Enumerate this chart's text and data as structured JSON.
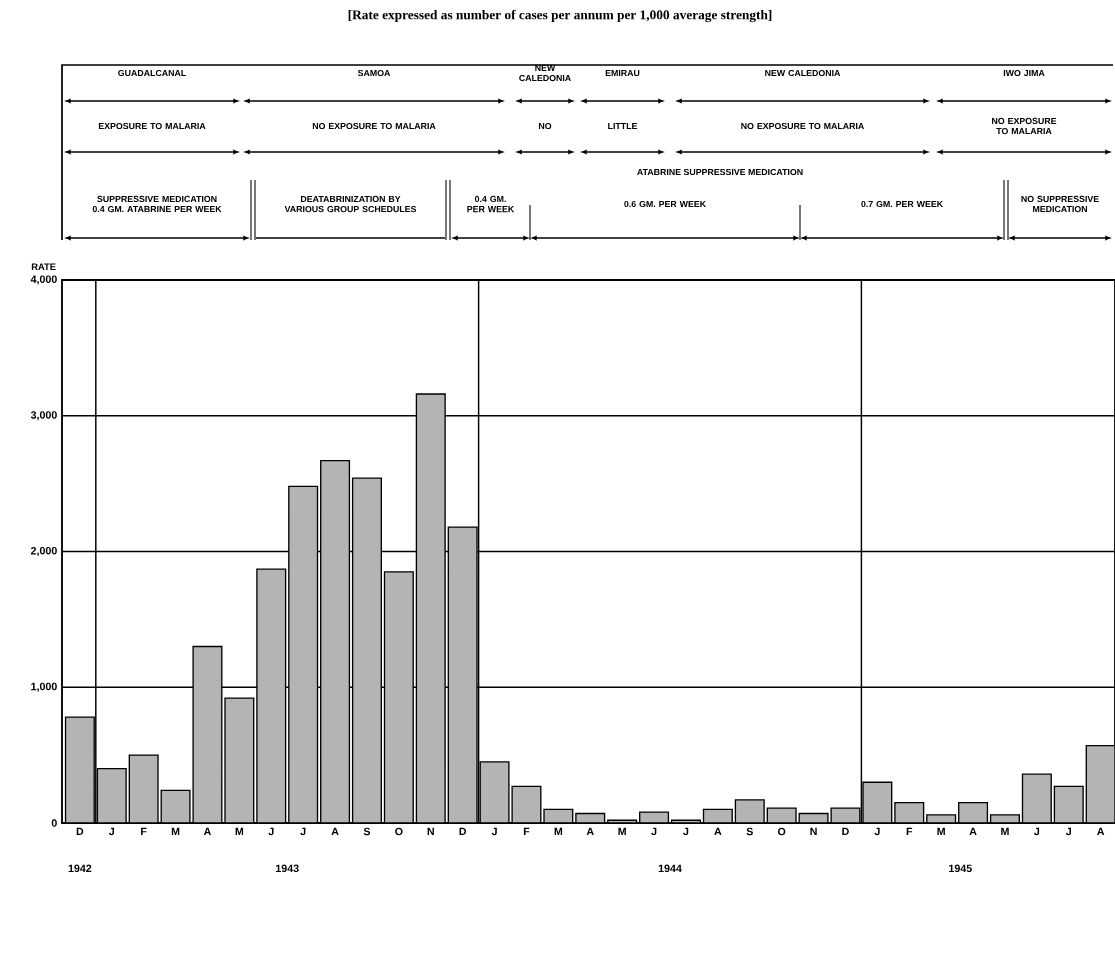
{
  "chart_data": {
    "type": "bar",
    "title": "[Rate expressed as number of cases per annum per 1,000 average strength]",
    "ylabel": "RATE",
    "categories": [
      "D",
      "J",
      "F",
      "M",
      "A",
      "M",
      "J",
      "J",
      "A",
      "S",
      "O",
      "N",
      "D",
      "J",
      "F",
      "M",
      "A",
      "M",
      "J",
      "J",
      "A",
      "S",
      "O",
      "N",
      "D",
      "J",
      "F",
      "M",
      "A",
      "M",
      "J",
      "J",
      "A"
    ],
    "values": [
      780,
      400,
      500,
      240,
      1300,
      920,
      1870,
      2480,
      2670,
      2540,
      1850,
      3160,
      2180,
      450,
      270,
      100,
      70,
      20,
      80,
      20,
      100,
      170,
      110,
      70,
      110,
      300,
      150,
      60,
      150,
      60,
      360,
      270,
      570
    ],
    "color": "#b4b4b4",
    "ylim": [
      0,
      4000
    ],
    "yticks": [
      0,
      {
        "value": 1000,
        "label": "1,000"
      },
      {
        "value": 2000,
        "label": "2,000"
      },
      {
        "value": 3000,
        "label": "3,000"
      },
      {
        "value": 4000,
        "label": "4,000"
      }
    ],
    "grid": "y",
    "annotations": [
      "GUADALCANAL",
      "SAMOA",
      "NEW CALEDONIA",
      "EMIRAU",
      "NEW CALEDONIA",
      "IWO JIMA",
      "EXPOSURE TO MALARIA",
      "NO EXPOSURE TO MALARIA",
      "NO",
      "LITTLE",
      "NO EXPOSURE TO MALARIA",
      "NO EXPOSURE TO MALARIA",
      "ATABRINE SUPPRESSIVE MEDICATION",
      "SUPPRESSIVE MEDICATION 0.4 GM. ATABRINE PER WEEK",
      "DEATABRINIZATION BY VARIOUS GROUP SCHEDULES",
      "0.4 GM. PER WEEK",
      "0.6 GM. PER WEEK",
      "0.7 GM. PER WEEK",
      "NO SUPPRESSIVE MEDICATION",
      "1942",
      "1943",
      "1944",
      "1945"
    ]
  }
}
